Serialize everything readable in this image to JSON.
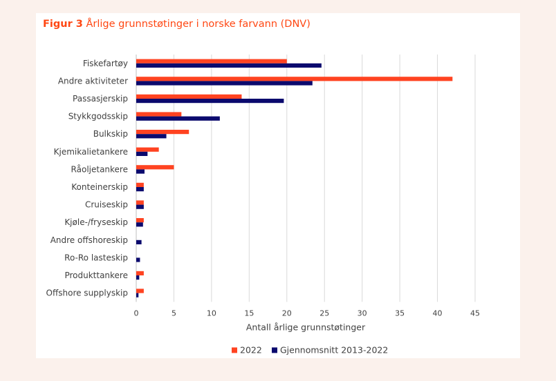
{
  "figure": {
    "number": "Figur 3",
    "title": "Årlige grunnstøtinger i norske farvann (DNV)"
  },
  "colors": {
    "accent": "#ff4713",
    "series_2022": "#ff4321",
    "series_avg": "#0b0a6e",
    "grid": "#d9d9d9",
    "background": "#fbf1ec"
  },
  "chart_data": {
    "type": "bar",
    "orientation": "horizontal",
    "categories": [
      "Fiskefartøy",
      "Andre aktiviteter",
      "Passasjerskip",
      "Stykkgodsskip",
      "Bulkskip",
      "Kjemikalietankere",
      "Råoljetankere",
      "Konteinerskip",
      "Cruiseskip",
      "Kjøle-/fryseskip",
      "Andre offshoreskip",
      "Ro-Ro lasteskip",
      "Produkttankere",
      "Offshore supplyskip"
    ],
    "series": [
      {
        "name": "2022",
        "values": [
          20,
          42,
          14,
          6,
          7,
          3,
          5,
          1,
          1,
          1,
          0,
          0,
          1,
          1
        ]
      },
      {
        "name": "Gjennomsnitt 2013-2022",
        "values": [
          24.6,
          23.4,
          19.6,
          11.1,
          4.0,
          1.5,
          1.1,
          1.0,
          1.0,
          0.9,
          0.7,
          0.5,
          0.4,
          0.3
        ]
      }
    ],
    "xlabel": "Antall årlige grunnstøtinger",
    "ylabel": "",
    "xlim": [
      0,
      45
    ],
    "xticks": [
      "0",
      "5",
      "10",
      "15",
      "20",
      "25",
      "30",
      "35",
      "40",
      "45"
    ],
    "grid": true,
    "legend_position": "bottom"
  }
}
